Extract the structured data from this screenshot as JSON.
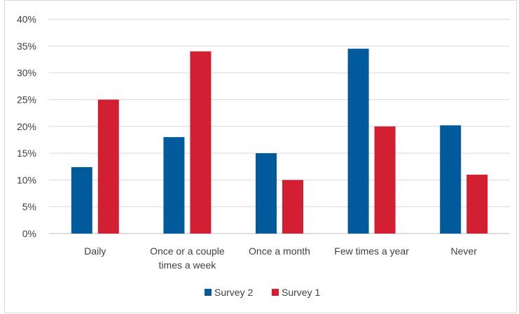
{
  "chart_data": {
    "type": "bar",
    "categories": [
      [
        "Daily"
      ],
      [
        "Once or a couple",
        "times a week"
      ],
      [
        "Once a month"
      ],
      [
        "Few times a year"
      ],
      [
        "Never"
      ]
    ],
    "series": [
      {
        "name": "Survey 2",
        "color": "#005a9c",
        "values": [
          12.4,
          18.0,
          15.0,
          34.5,
          20.2
        ]
      },
      {
        "name": "Survey 1",
        "color": "#d21f32",
        "values": [
          25.0,
          34.0,
          10.0,
          20.0,
          11.0
        ]
      }
    ],
    "y_ticks": [
      "0%",
      "5%",
      "10%",
      "15%",
      "20%",
      "25%",
      "30%",
      "35%",
      "40%"
    ],
    "ylim": [
      0,
      40
    ],
    "grid": true,
    "legend_position": "bottom",
    "title": "",
    "xlabel": "",
    "ylabel": ""
  }
}
